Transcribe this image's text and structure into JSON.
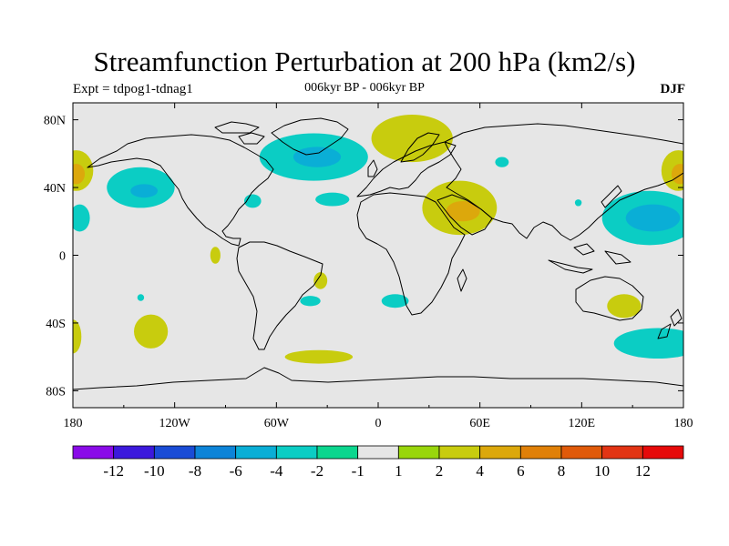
{
  "title": "Streamfunction Perturbation at 200 hPa (km2/s)",
  "left_label": "Expt = tdpog1-tdnag1",
  "center_label": "006kyr BP - 006kyr BP",
  "right_label": "DJF",
  "chart_data": {
    "type": "map",
    "projection": "cylindrical-equidistant",
    "lon_range": [
      -180,
      180
    ],
    "lat_range": [
      -90,
      90
    ],
    "x_ticks": [
      "180",
      "120W",
      "60W",
      "0",
      "60E",
      "120E",
      "180"
    ],
    "x_tick_values": [
      -180,
      -120,
      -60,
      0,
      60,
      120,
      180
    ],
    "y_ticks": [
      "80S",
      "40S",
      "0",
      "40N",
      "80N"
    ],
    "y_tick_values": [
      -80,
      -40,
      0,
      40,
      80
    ],
    "background_color": "#e6e6e6",
    "colorbar": {
      "labels": [
        "-12",
        "-10",
        "-8",
        "-6",
        "-4",
        "-2",
        "-1",
        "1",
        "2",
        "4",
        "6",
        "8",
        "10",
        "12"
      ],
      "colors": [
        "#8a0be8",
        "#3c19dc",
        "#1a4cd6",
        "#0d84d8",
        "#0aaed6",
        "#0bcdc4",
        "#0bd68e",
        "#e6e6e6",
        "#99d60c",
        "#c8cc0e",
        "#dca80c",
        "#e08008",
        "#e05a0a",
        "#e23414",
        "#e60a0a"
      ]
    },
    "anomalies": [
      {
        "region": "Greenland / N Atlantic",
        "level": "-2",
        "center": [
          -38,
          58
        ],
        "extent": [
          32,
          14
        ]
      },
      {
        "region": "Greenland core",
        "level": "-4",
        "center": [
          -36,
          58
        ],
        "extent": [
          14,
          6
        ]
      },
      {
        "region": "Scandinavia",
        "level": "2",
        "center": [
          20,
          69
        ],
        "extent": [
          24,
          14
        ]
      },
      {
        "region": "N Pacific east",
        "level": "-2",
        "center": [
          -140,
          40
        ],
        "extent": [
          20,
          12
        ]
      },
      {
        "region": "N Pacific core",
        "level": "-4",
        "center": [
          -138,
          38
        ],
        "extent": [
          8,
          4
        ]
      },
      {
        "region": "Date line north",
        "level": "2",
        "center": [
          -178,
          50
        ],
        "extent": [
          10,
          12
        ]
      },
      {
        "region": "Date line north core",
        "level": "4",
        "center": [
          -178,
          48
        ],
        "extent": [
          5,
          6
        ]
      },
      {
        "region": "W Pacific",
        "level": "-2",
        "center": [
          160,
          22
        ],
        "extent": [
          28,
          16
        ]
      },
      {
        "region": "W Pacific core",
        "level": "-4",
        "center": [
          162,
          22
        ],
        "extent": [
          16,
          8
        ]
      },
      {
        "region": "Arabia",
        "level": "2",
        "center": [
          48,
          28
        ],
        "extent": [
          22,
          16
        ]
      },
      {
        "region": "Arabia core",
        "level": "4",
        "center": [
          50,
          26
        ],
        "extent": [
          10,
          6
        ]
      },
      {
        "region": "N Atlantic mid",
        "level": "-2",
        "center": [
          -27,
          33
        ],
        "extent": [
          10,
          4
        ]
      },
      {
        "region": "Caribbean",
        "level": "-2",
        "center": [
          -74,
          32
        ],
        "extent": [
          5,
          4
        ]
      },
      {
        "region": "Central Asia",
        "level": "-2",
        "center": [
          73,
          55
        ],
        "extent": [
          4,
          3
        ]
      },
      {
        "region": "NW Pacific",
        "level": "2",
        "center": [
          177,
          50
        ],
        "extent": [
          10,
          12
        ]
      },
      {
        "region": "NW Pacific core",
        "level": "4",
        "center": [
          178,
          48
        ],
        "extent": [
          5,
          6
        ]
      },
      {
        "region": "E Pacific tropics",
        "level": "-2",
        "center": [
          -176,
          22
        ],
        "extent": [
          6,
          8
        ]
      },
      {
        "region": "E Pacific south",
        "level": "2",
        "center": [
          -96,
          0
        ],
        "extent": [
          3,
          5
        ]
      },
      {
        "region": "S Atlantic",
        "level": "2",
        "center": [
          -34,
          -15
        ],
        "extent": [
          4,
          5
        ]
      },
      {
        "region": "S America east",
        "level": "-2",
        "center": [
          -40,
          -27
        ],
        "extent": [
          6,
          3
        ]
      },
      {
        "region": "S Pacific",
        "level": "2",
        "center": [
          -134,
          -45
        ],
        "extent": [
          10,
          10
        ]
      },
      {
        "region": "S Pacific west small",
        "level": "-2",
        "center": [
          -140,
          -25
        ],
        "extent": [
          2,
          2
        ]
      },
      {
        "region": "Southern Ocean Atlantic",
        "level": "2",
        "center": [
          -35,
          -60
        ],
        "extent": [
          20,
          4
        ]
      },
      {
        "region": "S Africa west",
        "level": "-2",
        "center": [
          10,
          -27
        ],
        "extent": [
          8,
          4
        ]
      },
      {
        "region": "Australia",
        "level": "2",
        "center": [
          145,
          -30
        ],
        "extent": [
          10,
          7
        ]
      },
      {
        "region": "S Pacific east",
        "level": "-2",
        "center": [
          165,
          -52
        ],
        "extent": [
          26,
          9
        ]
      },
      {
        "region": "Far W tropics",
        "level": "2",
        "center": [
          -180,
          -48
        ],
        "extent": [
          5,
          10
        ]
      },
      {
        "region": "Asia small",
        "level": "-2",
        "center": [
          118,
          31
        ],
        "extent": [
          2,
          2
        ]
      }
    ]
  }
}
